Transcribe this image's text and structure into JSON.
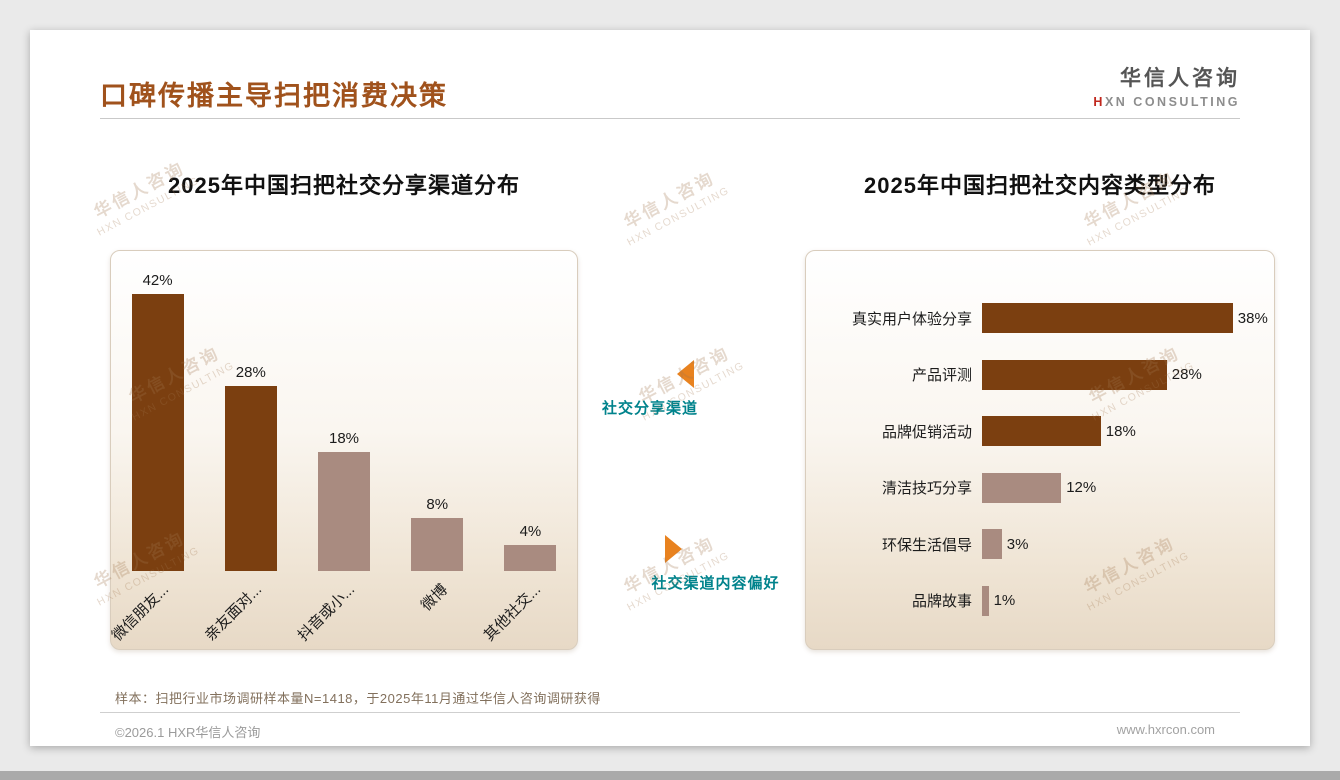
{
  "page": {
    "title": "口碑传播主导扫把消费决策",
    "logo": {
      "cn": "华信人咨询",
      "h": "H",
      "en_rest": "XN CONSULTING"
    },
    "watermark": {
      "line1": "华信人咨询",
      "line2": "HXN CONSULTING"
    },
    "sample_note": "样本：扫把行业市场调研样本量N=1418，于2025年11月通过华信人咨询调研获得",
    "footer": {
      "copyright": "©2026.1 HXR华信人咨询",
      "website": "www.hxrcon.com"
    }
  },
  "annotations": [
    {
      "label": "社交分享渠道",
      "direction": "left"
    },
    {
      "label": "社交渠道内容偏好",
      "direction": "right"
    }
  ],
  "colors": {
    "title_brown": "#A0521C",
    "dark_bar": "#7B3F10",
    "light_bar": "#A98B80",
    "teal_label": "#00838C",
    "arrow_orange": "#E8821F"
  },
  "chart_data": [
    {
      "type": "bar",
      "title": "2025年中国扫把社交分享渠道分布",
      "categories": [
        "微信朋友...",
        "亲友面对...",
        "抖音或小...",
        "微博",
        "其他社交..."
      ],
      "values": [
        42,
        28,
        18,
        8,
        4
      ],
      "unit": "%",
      "colors": [
        "#7B3F10",
        "#7B3F10",
        "#A98B80",
        "#A98B80",
        "#A98B80"
      ],
      "ylim": [
        0,
        45
      ],
      "grid": false,
      "legend": "none"
    },
    {
      "type": "bar",
      "orientation": "horizontal",
      "title": "2025年中国扫把社交内容类型分布",
      "categories": [
        "真实用户体验分享",
        "产品评测",
        "品牌促销活动",
        "清洁技巧分享",
        "环保生活倡导",
        "品牌故事"
      ],
      "values": [
        38,
        28,
        18,
        12,
        3,
        1
      ],
      "unit": "%",
      "colors": [
        "#7B3F10",
        "#7B3F10",
        "#7B3F10",
        "#A98B80",
        "#A98B80",
        "#A98B80"
      ],
      "xlim": [
        0,
        40
      ],
      "grid": false,
      "legend": "none"
    }
  ]
}
